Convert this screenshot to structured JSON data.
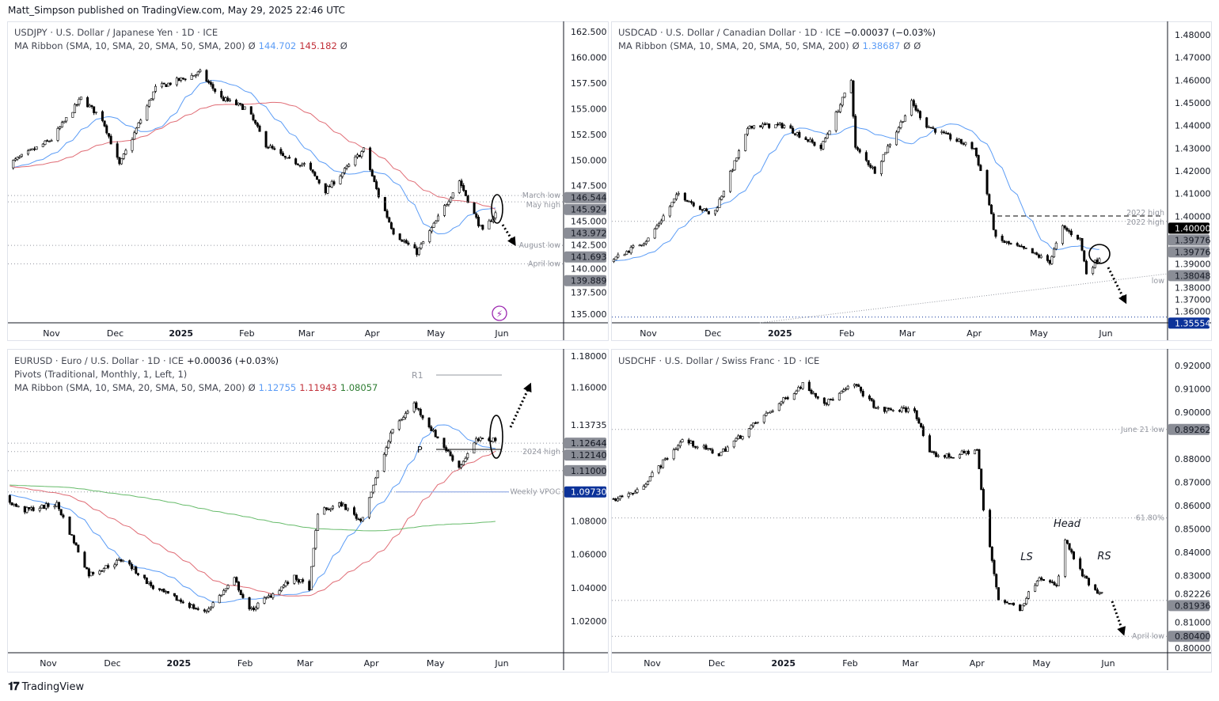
{
  "publisher_line": "Matt_Simpson published on TradingView.com, May 29, 2025 22:46 UTC",
  "footer": {
    "brand": "TradingView"
  },
  "colors": {
    "up": "#ffffff",
    "down": "#000000",
    "ma10": "#5b9cf6",
    "ma20": "#e06c75",
    "ma50_green": "#66bb6a",
    "axis_tag_gray": "#8a8d96",
    "axis_tag_blue": "#0c3299",
    "axis_tag_black": "#000000"
  },
  "panels": [
    {
      "symbol_line": "USDJPY · U.S. Dollar / Japanese Yen · 1D · ICE",
      "change": "",
      "indicators": [
        {
          "name": "MA Ribbon (SMA, 10, SMA, 20, SMA, 50, SMA, 200)",
          "values": [
            {
              "v": "Ø",
              "c": "#434651"
            },
            {
              "v": "144.702",
              "c": "#5b9cf6"
            },
            {
              "v": "145.182",
              "c": "#c2313a"
            },
            {
              "v": "Ø",
              "c": "#434651"
            }
          ]
        }
      ]
    },
    {
      "symbol_line": "USDCAD · U.S. Dollar / Canadian Dollar · 1D · ICE",
      "change": "−0.00037 (−0.03%)",
      "indicators": [
        {
          "name": "MA Ribbon (SMA, 10, SMA, 20, SMA, 50, SMA, 200)",
          "values": [
            {
              "v": "Ø",
              "c": "#434651"
            },
            {
              "v": "1.38687",
              "c": "#5b9cf6"
            },
            {
              "v": "Ø",
              "c": "#434651"
            },
            {
              "v": "Ø",
              "c": "#434651"
            }
          ]
        }
      ]
    },
    {
      "symbol_line": "EURUSD · Euro / U.S. Dollar · 1D · ICE",
      "change": "+0.00036 (+0.03%)",
      "indicators": [
        {
          "name": "Pivots (Traditional, Monthly, 1, Left, 1)",
          "values": []
        },
        {
          "name": "MA Ribbon (SMA, 10, SMA, 20, SMA, 50, SMA, 200)",
          "values": [
            {
              "v": "Ø",
              "c": "#434651"
            },
            {
              "v": "1.12755",
              "c": "#5b9cf6"
            },
            {
              "v": "1.11943",
              "c": "#c2313a"
            },
            {
              "v": "1.08057",
              "c": "#2e7d32"
            }
          ]
        }
      ]
    },
    {
      "symbol_line": "USDCHF · U.S. Dollar / Swiss Franc · 1D · ICE",
      "change": "",
      "indicators": []
    }
  ],
  "chart_data": [
    {
      "type": "candlestick",
      "symbol": "USDJPY",
      "x": [
        "2024-10-11",
        "2024-11-01",
        "2024-11-15",
        "2024-11-25",
        "2024-12-03",
        "2024-12-20",
        "2025-01-10",
        "2025-01-20",
        "2025-02-01",
        "2025-02-10",
        "2025-02-20",
        "2025-03-01",
        "2025-03-10",
        "2025-03-28",
        "2025-04-04",
        "2025-04-11",
        "2025-04-22",
        "2025-05-01",
        "2025-05-12",
        "2025-05-19",
        "2025-05-23",
        "2025-05-29"
      ],
      "close": [
        149.5,
        152,
        156,
        154,
        149.5,
        157,
        158.5,
        156,
        155,
        151.5,
        150,
        149.5,
        147,
        151,
        146.5,
        143,
        141,
        144,
        148,
        144.7,
        143,
        144.8
      ],
      "time_ticks": [
        "Nov",
        "Dec",
        "2025",
        "Feb",
        "Mar",
        "Apr",
        "May",
        "Jun"
      ],
      "price_ticks": [
        "162.500",
        "160.000",
        "157.500",
        "155.000",
        "152.500",
        "150.000",
        "147.500",
        "145.000",
        "142.500",
        "140.000",
        "137.500",
        "135.000"
      ],
      "ylim": [
        135,
        162.5
      ],
      "levels": [
        {
          "price": 146.544,
          "label": "March low"
        },
        {
          "price": 145.924,
          "label": "May high"
        },
        {
          "price": 141.693,
          "label": "August low"
        },
        {
          "price": 139.889,
          "label": "April low"
        }
      ],
      "axis_tags": [
        {
          "value": "146.544",
          "style": "gray"
        },
        {
          "value": "145.924",
          "style": "gray"
        },
        {
          "value": "143.972",
          "style": "gray"
        },
        {
          "value": "141.693",
          "style": "gray"
        },
        {
          "value": "139.889",
          "style": "gray"
        }
      ],
      "annotations": []
    },
    {
      "type": "candlestick",
      "symbol": "USDCAD",
      "x": [
        "2024-10-14",
        "2024-11-01",
        "2024-11-15",
        "2024-12-01",
        "2024-12-18",
        "2025-01-03",
        "2025-01-20",
        "2025-02-03",
        "2025-02-05",
        "2025-02-14",
        "2025-03-03",
        "2025-03-10",
        "2025-03-20",
        "2025-04-01",
        "2025-04-07",
        "2025-04-11",
        "2025-04-25",
        "2025-05-06",
        "2025-05-12",
        "2025-05-20",
        "2025-05-23",
        "2025-05-29"
      ],
      "close": [
        1.38,
        1.39,
        1.41,
        1.4,
        1.44,
        1.44,
        1.43,
        1.46,
        1.43,
        1.42,
        1.45,
        1.44,
        1.435,
        1.43,
        1.41,
        1.39,
        1.385,
        1.38,
        1.395,
        1.39,
        1.375,
        1.382
      ],
      "time_ticks": [
        "Nov",
        "Dec",
        "2025",
        "Feb",
        "Mar",
        "Apr",
        "May",
        "Jun"
      ],
      "price_ticks": [
        "1.48000",
        "1.47000",
        "1.46000",
        "1.45000",
        "1.44000",
        "1.43000",
        "1.42000",
        "1.41000",
        "1.40000",
        "1.39000",
        "1.38000",
        "1.37000",
        "1.36000"
      ],
      "ylim": [
        1.355,
        1.485
      ],
      "levels": [
        {
          "price": 1.39776,
          "label": "2022 high"
        },
        {
          "price": 1.35554,
          "label": ""
        }
      ],
      "trendline_label": "low",
      "axis_tags": [
        {
          "value": "1.40000",
          "style": "black"
        },
        {
          "value": "1.39776",
          "style": "gray"
        },
        {
          "value": "1.39776",
          "style": "gray"
        },
        {
          "value": "1.38048",
          "style": "gray"
        },
        {
          "value": "1.35554",
          "style": "blue"
        }
      ],
      "annotations": []
    },
    {
      "type": "candlestick",
      "symbol": "EURUSD",
      "x": [
        "2024-10-08",
        "2024-10-20",
        "2024-11-05",
        "2024-11-20",
        "2024-12-06",
        "2024-12-20",
        "2025-01-13",
        "2025-01-27",
        "2025-02-03",
        "2025-02-24",
        "2025-03-03",
        "2025-03-07",
        "2025-03-18",
        "2025-03-27",
        "2025-04-03",
        "2025-04-11",
        "2025-04-21",
        "2025-04-30",
        "2025-05-12",
        "2025-05-20",
        "2025-05-29"
      ],
      "close": [
        1.097,
        1.086,
        1.09,
        1.048,
        1.057,
        1.04,
        1.025,
        1.045,
        1.026,
        1.046,
        1.04,
        1.085,
        1.09,
        1.08,
        1.105,
        1.135,
        1.15,
        1.133,
        1.112,
        1.128,
        1.129
      ],
      "time_ticks": [
        "Nov",
        "Dec",
        "2025",
        "Feb",
        "Mar",
        "Apr",
        "May",
        "Jun"
      ],
      "price_ticks": [
        "1.18000",
        "1.16000",
        "1.13735",
        "1.08000",
        "1.06000",
        "1.04000",
        "1.02000"
      ],
      "ylim": [
        1.01,
        1.18
      ],
      "levels": [
        {
          "price": 1.12644,
          "label": ""
        },
        {
          "price": 1.1214,
          "label": "2024 high"
        },
        {
          "price": 1.11,
          "label": ""
        },
        {
          "price": 1.0973,
          "label": "Weekly VPOC"
        }
      ],
      "pivots": [
        {
          "label": "R1",
          "price": 1.1672
        },
        {
          "label": "P",
          "price": 1.1227
        }
      ],
      "axis_tags": [
        {
          "value": "1.12644",
          "style": "gray"
        },
        {
          "value": "1.12140",
          "style": "gray"
        },
        {
          "value": "1.11000",
          "style": "gray"
        },
        {
          "value": "1.09730",
          "style": "blue"
        }
      ],
      "annotations": []
    },
    {
      "type": "candlestick",
      "symbol": "USDCHF",
      "x": [
        "2024-10-11",
        "2024-10-25",
        "2024-11-15",
        "2024-12-02",
        "2024-12-20",
        "2025-01-10",
        "2025-01-21",
        "2025-02-03",
        "2025-02-14",
        "2025-03-03",
        "2025-03-10",
        "2025-03-20",
        "2025-04-01",
        "2025-04-04",
        "2025-04-11",
        "2025-04-21",
        "2025-04-30",
        "2025-05-08",
        "2025-05-12",
        "2025-05-20",
        "2025-05-27",
        "2025-05-29"
      ],
      "close": [
        0.862,
        0.866,
        0.888,
        0.882,
        0.896,
        0.912,
        0.904,
        0.912,
        0.901,
        0.901,
        0.882,
        0.881,
        0.884,
        0.858,
        0.82,
        0.816,
        0.83,
        0.825,
        0.845,
        0.83,
        0.822,
        0.822
      ],
      "time_ticks": [
        "Nov",
        "Dec",
        "2025",
        "Feb",
        "Mar",
        "Apr",
        "May",
        "Jun"
      ],
      "price_ticks": [
        "0.92000",
        "0.91000",
        "0.90000",
        "0.88000",
        "0.87000",
        "0.86000",
        "0.85000",
        "0.84000",
        "0.83000",
        "0.82226",
        "0.81000",
        "0.80000"
      ],
      "ylim": [
        0.8,
        0.92
      ],
      "levels": [
        {
          "price": 0.89262,
          "label": "June 21 low"
        },
        {
          "price": 0.8547,
          "label": "61.80%"
        },
        {
          "price": 0.81936,
          "label": ""
        },
        {
          "price": 0.804,
          "label": "April low"
        }
      ],
      "axis_tags": [
        {
          "value": "0.89262",
          "style": "gray"
        },
        {
          "value": "0.81936",
          "style": "gray"
        },
        {
          "value": "0.80400",
          "style": "gray"
        }
      ],
      "annotations": [
        "LS",
        "Head",
        "RS"
      ]
    }
  ]
}
